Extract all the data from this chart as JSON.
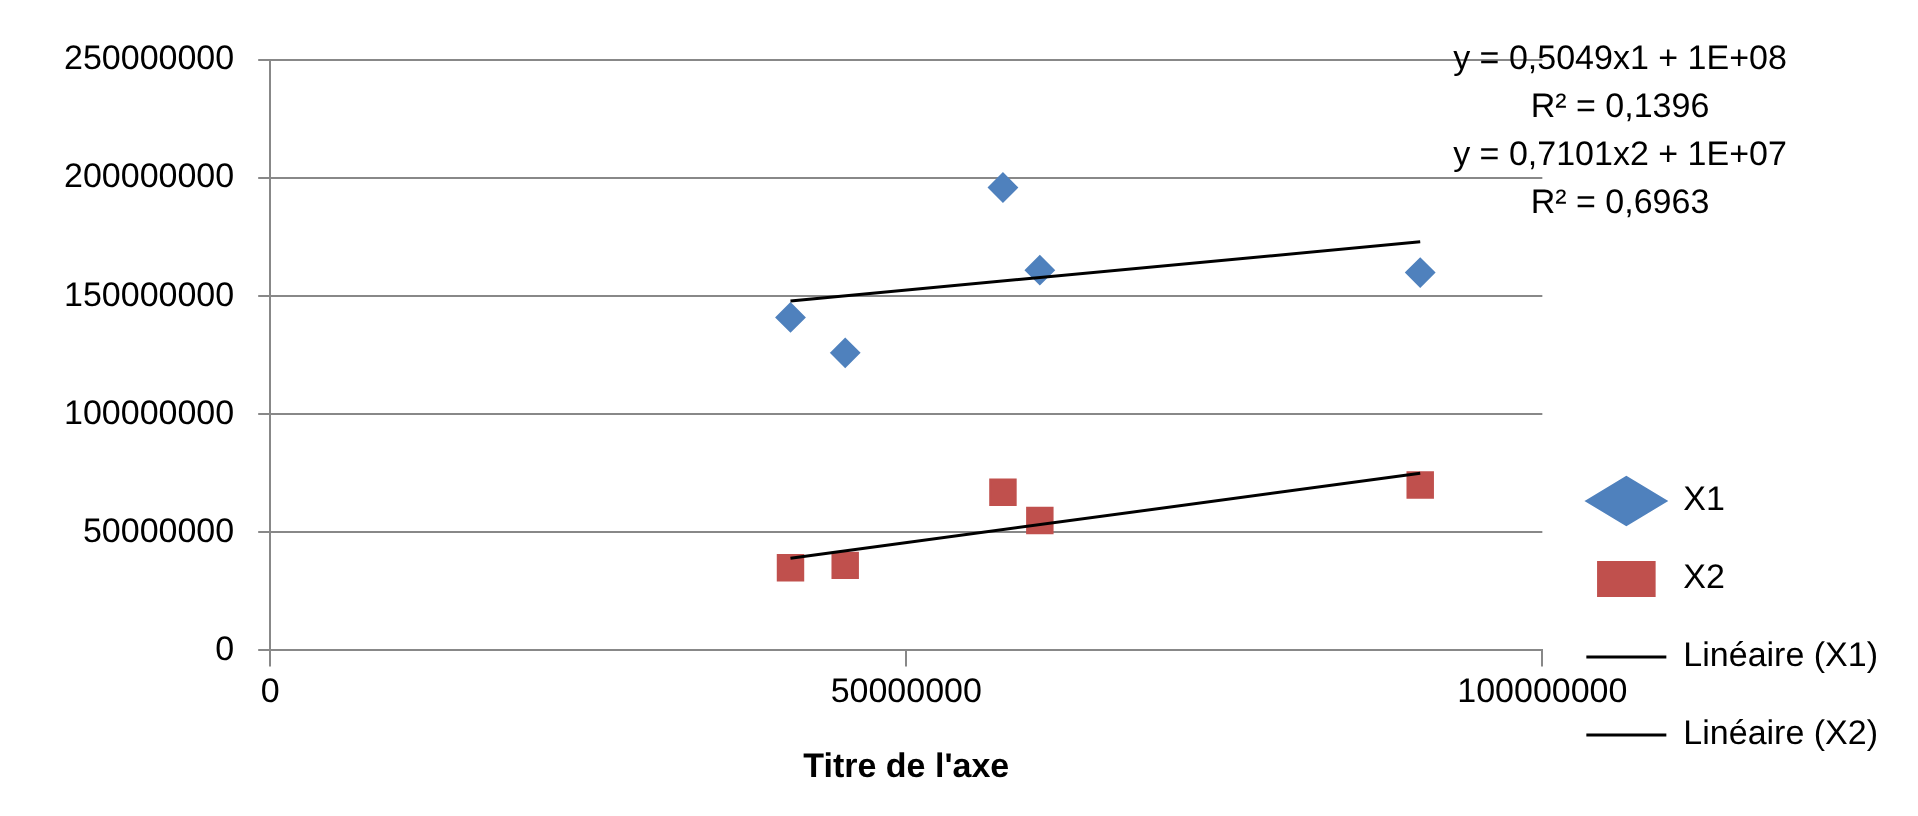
{
  "chart_data": {
    "type": "scatter",
    "xlabel": "Titre de l'axe",
    "xlim": [
      0,
      100000000
    ],
    "xticks": [
      0,
      50000000,
      100000000
    ],
    "ylim": [
      0,
      250000000
    ],
    "yticks": [
      0,
      50000000,
      100000000,
      150000000,
      200000000,
      250000000
    ],
    "grid": "y",
    "legend": "right",
    "annotations": [
      "y = 0,5049x1 + 1E+08",
      "R² = 0,1396",
      "y = 0,7101x2 + 1E+07",
      "R² = 0,6963"
    ],
    "series": [
      {
        "name": "X1",
        "color": "#4f81bd",
        "marker": "diamond",
        "x": [
          40900000,
          45200000,
          57600000,
          60500000,
          90400000
        ],
        "values": [
          141000000,
          126000000,
          196000000,
          161000000,
          160000000
        ]
      },
      {
        "name": "X2",
        "color": "#c0504d",
        "marker": "square",
        "x": [
          40900000,
          45200000,
          57600000,
          60500000,
          90400000
        ],
        "values": [
          35000000,
          36000000,
          67000000,
          55000000,
          70000000
        ]
      },
      {
        "name": "Linéaire (X1)",
        "type": "line",
        "color": "#000000",
        "marker": "none",
        "line_style": "solid",
        "x": [
          40900000,
          90400000
        ],
        "values": [
          148000000,
          173000000
        ]
      },
      {
        "name": "Linéaire (X2)",
        "type": "line",
        "color": "#000000",
        "marker": "none",
        "line_style": "solid",
        "x": [
          40900000,
          90400000
        ],
        "values": [
          39000000,
          75000000
        ]
      }
    ]
  }
}
